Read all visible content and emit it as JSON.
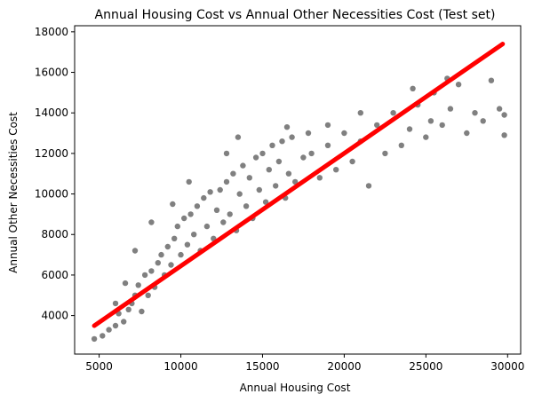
{
  "chart_data": {
    "type": "scatter",
    "title": "Annual Housing Cost vs Annual Other Necessities Cost (Test set)",
    "xlabel": "Annual Housing Cost",
    "ylabel": "Annual Other Necessities Cost",
    "xlim": [
      3500,
      30800
    ],
    "ylim": [
      2100,
      18300
    ],
    "xticks": [
      5000,
      10000,
      15000,
      20000,
      25000,
      30000
    ],
    "yticks": [
      4000,
      6000,
      8000,
      10000,
      12000,
      14000,
      16000,
      18000
    ],
    "grid": false,
    "series": [
      {
        "kind": "scatter",
        "color": "#808080",
        "points": [
          [
            4700,
            2850
          ],
          [
            5200,
            3000
          ],
          [
            5600,
            3300
          ],
          [
            6000,
            3500
          ],
          [
            6200,
            4100
          ],
          [
            6500,
            3700
          ],
          [
            6800,
            4300
          ],
          [
            7000,
            4600
          ],
          [
            7200,
            5000
          ],
          [
            7400,
            5500
          ],
          [
            7600,
            4200
          ],
          [
            7800,
            6000
          ],
          [
            8000,
            5000
          ],
          [
            8200,
            6200
          ],
          [
            8400,
            5400
          ],
          [
            8600,
            6600
          ],
          [
            8800,
            7000
          ],
          [
            9000,
            6000
          ],
          [
            9200,
            7400
          ],
          [
            9400,
            6500
          ],
          [
            9600,
            7800
          ],
          [
            9800,
            8400
          ],
          [
            10000,
            7000
          ],
          [
            10200,
            8800
          ],
          [
            10400,
            7500
          ],
          [
            10600,
            9000
          ],
          [
            10800,
            8000
          ],
          [
            11000,
            9400
          ],
          [
            11200,
            7200
          ],
          [
            11400,
            9800
          ],
          [
            11600,
            8400
          ],
          [
            11800,
            10100
          ],
          [
            12000,
            7800
          ],
          [
            12200,
            9200
          ],
          [
            12400,
            10200
          ],
          [
            12600,
            8600
          ],
          [
            12800,
            10600
          ],
          [
            13000,
            9000
          ],
          [
            13200,
            11000
          ],
          [
            13400,
            8200
          ],
          [
            13600,
            10000
          ],
          [
            13800,
            11400
          ],
          [
            14000,
            9400
          ],
          [
            14200,
            10800
          ],
          [
            14400,
            8800
          ],
          [
            14600,
            11800
          ],
          [
            14800,
            10200
          ],
          [
            15000,
            12000
          ],
          [
            15200,
            9600
          ],
          [
            15400,
            11200
          ],
          [
            15600,
            12400
          ],
          [
            15800,
            10400
          ],
          [
            16000,
            11600
          ],
          [
            16200,
            12600
          ],
          [
            16400,
            9800
          ],
          [
            16600,
            11000
          ],
          [
            16800,
            12800
          ],
          [
            17000,
            10600
          ],
          [
            17500,
            11800
          ],
          [
            18000,
            12000
          ],
          [
            18500,
            10800
          ],
          [
            19000,
            12400
          ],
          [
            19500,
            11200
          ],
          [
            20000,
            13000
          ],
          [
            20500,
            11600
          ],
          [
            21000,
            12600
          ],
          [
            21500,
            10400
          ],
          [
            22000,
            13400
          ],
          [
            22500,
            12000
          ],
          [
            23000,
            14000
          ],
          [
            23500,
            12400
          ],
          [
            24000,
            13200
          ],
          [
            24500,
            14400
          ],
          [
            25000,
            12800
          ],
          [
            25500,
            15000
          ],
          [
            26000,
            13400
          ],
          [
            26500,
            14200
          ],
          [
            27000,
            15400
          ],
          [
            27500,
            13000
          ],
          [
            28000,
            14000
          ],
          [
            28500,
            13600
          ],
          [
            29000,
            15600
          ],
          [
            29500,
            14200
          ],
          [
            29800,
            13900
          ],
          [
            29800,
            12900
          ],
          [
            26300,
            15700
          ],
          [
            25300,
            13600
          ],
          [
            24200,
            15200
          ],
          [
            21000,
            14000
          ],
          [
            19000,
            13400
          ],
          [
            17800,
            13000
          ],
          [
            16500,
            13300
          ],
          [
            13500,
            12800
          ],
          [
            12800,
            12000
          ],
          [
            10500,
            10600
          ],
          [
            9500,
            9500
          ],
          [
            8200,
            8600
          ],
          [
            7200,
            7200
          ],
          [
            6600,
            5600
          ],
          [
            6000,
            4600
          ]
        ]
      },
      {
        "kind": "line",
        "color": "#ff0000",
        "points": [
          [
            4700,
            3500
          ],
          [
            29700,
            17400
          ]
        ]
      }
    ]
  }
}
